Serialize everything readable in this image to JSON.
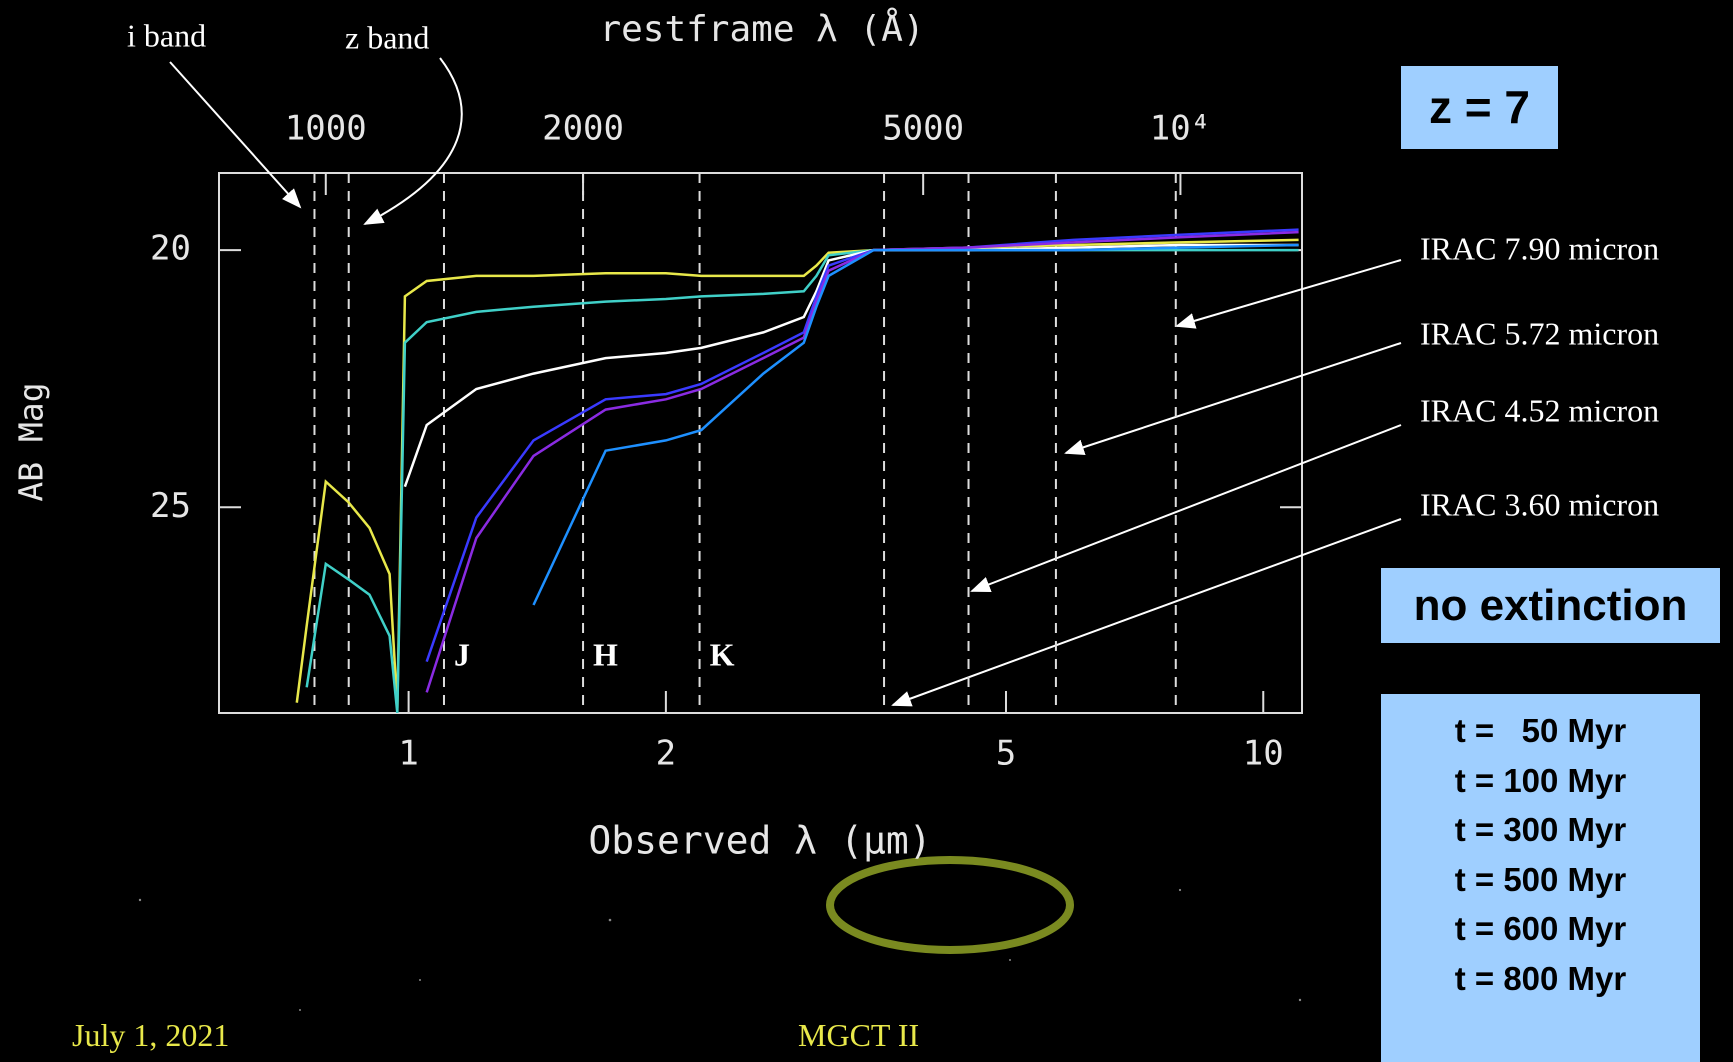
{
  "chart_data": {
    "type": "line",
    "x_label": "Observed λ (μm)",
    "x2_label": "restframe λ (Å)",
    "y_label": "AB Mag",
    "xscale": "log",
    "xlim": [
      0.6,
      11.1
    ],
    "xticks": [
      1,
      2,
      5,
      10
    ],
    "x2lim": [
      750,
      13875
    ],
    "x2ticks": [
      1000,
      2000,
      5000,
      {
        "value": 10000,
        "label": "10⁴"
      }
    ],
    "ylim": [
      29,
      18.5
    ],
    "yticks": [
      20,
      25
    ],
    "x": [
      0.74,
      0.76,
      0.8,
      0.85,
      0.9,
      0.95,
      0.97,
      0.99,
      1.05,
      1.2,
      1.4,
      1.7,
      2.0,
      2.2,
      2.6,
      2.9,
      3.0,
      3.1,
      3.5,
      4.5,
      6,
      8,
      11
    ],
    "series": [
      {
        "name": "t =   50 Myr",
        "color": "#e8e84a",
        "values": [
          28.8,
          27.3,
          24.5,
          24.9,
          25.4,
          26.3,
          28.9,
          20.9,
          20.6,
          20.5,
          20.5,
          20.45,
          20.45,
          20.5,
          20.5,
          20.5,
          20.3,
          20.05,
          20.0,
          19.95,
          19.9,
          19.85,
          19.8
        ]
      },
      {
        "name": "t = 100 Myr",
        "color": "#40d0c8",
        "values": [
          null,
          28.5,
          26.1,
          26.4,
          26.7,
          27.5,
          29.0,
          21.8,
          21.4,
          21.2,
          21.1,
          21.0,
          20.95,
          20.9,
          20.85,
          20.8,
          20.5,
          20.1,
          20.0,
          20.0,
          20.0,
          20.0,
          20.0
        ]
      },
      {
        "name": "t = 300 Myr",
        "color": "#ffffff",
        "values": [
          null,
          null,
          null,
          null,
          null,
          null,
          null,
          24.6,
          23.4,
          22.7,
          22.4,
          22.1,
          22.0,
          21.9,
          21.6,
          21.3,
          20.8,
          20.2,
          20.0,
          20.0,
          19.95,
          19.9,
          19.9
        ]
      },
      {
        "name": "t = 500 Myr",
        "color": "#3a3aff",
        "values": [
          null,
          null,
          null,
          null,
          null,
          null,
          null,
          null,
          28.0,
          25.2,
          23.7,
          22.9,
          22.8,
          22.6,
          22.0,
          21.6,
          20.9,
          20.3,
          20.0,
          19.95,
          19.8,
          19.7,
          19.6
        ]
      },
      {
        "name": "t = 600 Myr",
        "color": "#8a2be2",
        "values": [
          null,
          null,
          null,
          null,
          null,
          null,
          null,
          null,
          28.6,
          25.6,
          24.0,
          23.1,
          22.9,
          22.7,
          22.1,
          21.7,
          21.0,
          20.4,
          20.0,
          19.95,
          19.85,
          19.75,
          19.65
        ]
      },
      {
        "name": "t = 800 Myr",
        "color": "#1e90ff",
        "values": [
          null,
          null,
          null,
          null,
          null,
          null,
          null,
          null,
          null,
          null,
          26.9,
          23.9,
          23.7,
          23.5,
          22.4,
          21.8,
          21.1,
          20.5,
          20.0,
          20.0,
          20.0,
          19.95,
          19.9
        ]
      }
    ],
    "bands": [
      {
        "label": "i band",
        "x": 0.776
      },
      {
        "label": "z band",
        "x": 0.851
      },
      {
        "label": "J",
        "x": 1.1
      },
      {
        "label": "H",
        "x": 1.6
      },
      {
        "label": "K",
        "x": 2.19
      },
      {
        "label": "IRAC 3.60 micron",
        "x": 3.6
      },
      {
        "label": "IRAC 4.52 micron",
        "x": 4.52
      },
      {
        "label": "IRAC 5.72 micron",
        "x": 5.72
      },
      {
        "label": "IRAC 7.90 micron",
        "x": 7.9
      }
    ],
    "redshift": "z = 7",
    "extinction": "no extinction"
  },
  "footer": {
    "date": "July 1, 2021",
    "event": "MGCT II"
  }
}
